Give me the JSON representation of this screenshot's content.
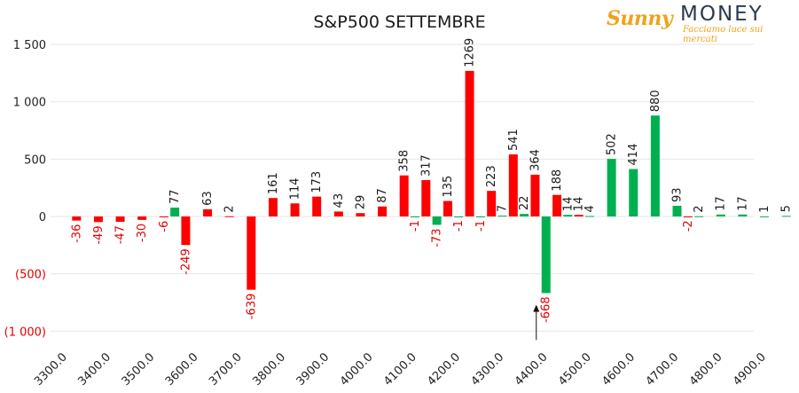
{
  "branding": {
    "sunny": "Sunny",
    "money": "MONEY",
    "tagline": "Facciamo luce sui mercati"
  },
  "chart_data": {
    "type": "bar",
    "title": "S&P500 SETTEMBRE",
    "xlabel": "",
    "ylabel": "",
    "ylim": [
      -1000,
      1500
    ],
    "grid": true,
    "legend": "none",
    "y_ticks": [
      {
        "value": 1500,
        "label": "1 500"
      },
      {
        "value": 1000,
        "label": "1 000"
      },
      {
        "value": 500,
        "label": "500"
      },
      {
        "value": 0,
        "label": "0"
      },
      {
        "value": -500,
        "label": "(500)"
      },
      {
        "value": -1000,
        "label": "(1 000)"
      }
    ],
    "x_ticks": [
      {
        "value": 3300,
        "label": "3300.0"
      },
      {
        "value": 3400,
        "label": "3400.0"
      },
      {
        "value": 3500,
        "label": "3500.0"
      },
      {
        "value": 3600,
        "label": "3600.0"
      },
      {
        "value": 3700,
        "label": "3700.0"
      },
      {
        "value": 3800,
        "label": "3800.0"
      },
      {
        "value": 3900,
        "label": "3900.0"
      },
      {
        "value": 4000,
        "label": "4000.0"
      },
      {
        "value": 4100,
        "label": "4100.0"
      },
      {
        "value": 4200,
        "label": "4200.0"
      },
      {
        "value": 4300,
        "label": "4300.0"
      },
      {
        "value": 4400,
        "label": "4400.0"
      },
      {
        "value": 4500,
        "label": "4500.0"
      },
      {
        "value": 4600,
        "label": "4600.0"
      },
      {
        "value": 4700,
        "label": "4700.0"
      },
      {
        "value": 4800,
        "label": "4800.0"
      },
      {
        "value": 4900,
        "label": "4900.0"
      }
    ],
    "series": [
      {
        "color": "#ff0000",
        "points": [
          {
            "x": 3325,
            "y": -36
          },
          {
            "x": 3375,
            "y": -49
          },
          {
            "x": 3425,
            "y": -47
          },
          {
            "x": 3475,
            "y": -30
          },
          {
            "x": 3525,
            "y": -6
          },
          {
            "x": 3575,
            "y": -249
          },
          {
            "x": 3625,
            "y": 63
          },
          {
            "x": 3675,
            "y": 2
          },
          {
            "x": 3725,
            "y": -639
          },
          {
            "x": 3775,
            "y": 161
          },
          {
            "x": 3825,
            "y": 114
          },
          {
            "x": 3875,
            "y": 173
          },
          {
            "x": 3925,
            "y": 43
          },
          {
            "x": 3975,
            "y": 29
          },
          {
            "x": 4025,
            "y": 87
          },
          {
            "x": 4075,
            "y": 358
          },
          {
            "x": 4125,
            "y": 317
          },
          {
            "x": 4175,
            "y": 135
          },
          {
            "x": 4225,
            "y": 1269
          },
          {
            "x": 4275,
            "y": 223
          },
          {
            "x": 4325,
            "y": 541
          },
          {
            "x": 4375,
            "y": 364
          },
          {
            "x": 4425,
            "y": 188
          },
          {
            "x": 4475,
            "y": 14
          },
          {
            "x": 4725,
            "y": -2
          }
        ]
      },
      {
        "color": "#00b050",
        "points": [
          {
            "x": 3550,
            "y": 77
          },
          {
            "x": 4100,
            "y": -1
          },
          {
            "x": 4150,
            "y": -73
          },
          {
            "x": 4200,
            "y": -1
          },
          {
            "x": 4250,
            "y": -1
          },
          {
            "x": 4300,
            "y": 7
          },
          {
            "x": 4350,
            "y": 22
          },
          {
            "x": 4400,
            "y": -668
          },
          {
            "x": 4450,
            "y": 14
          },
          {
            "x": 4500,
            "y": 4
          },
          {
            "x": 4550,
            "y": 502
          },
          {
            "x": 4600,
            "y": 414
          },
          {
            "x": 4650,
            "y": 880
          },
          {
            "x": 4700,
            "y": 93
          },
          {
            "x": 4750,
            "y": 2
          },
          {
            "x": 4800,
            "y": 17
          },
          {
            "x": 4850,
            "y": 17
          },
          {
            "x": 4900,
            "y": 1
          },
          {
            "x": 4950,
            "y": 5
          }
        ]
      }
    ],
    "annotations": [
      {
        "type": "arrow",
        "x": 4400,
        "y_from": -1000,
        "y_to": -770
      }
    ]
  }
}
